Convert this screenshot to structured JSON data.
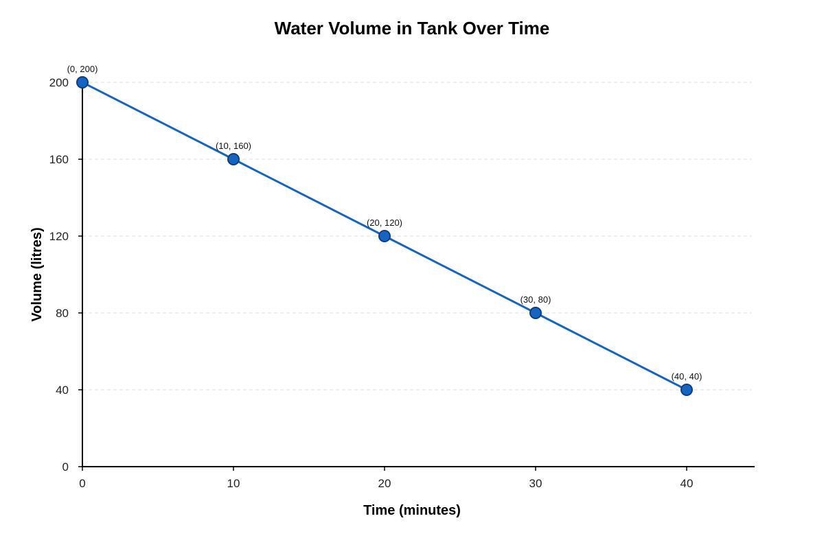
{
  "chart_data": {
    "type": "line",
    "title": "Water Volume in Tank Over Time",
    "xlabel": "Time (minutes)",
    "ylabel": "Volume (litres)",
    "xlim": [
      0,
      44.5
    ],
    "ylim": [
      0,
      200
    ],
    "xticks": [
      0,
      10,
      20,
      30,
      40
    ],
    "yticks": [
      0,
      40,
      80,
      120,
      160,
      200
    ],
    "grid": "horizontal-dashed",
    "x": [
      0,
      10,
      20,
      30,
      40
    ],
    "series": [
      {
        "values": [
          200,
          160,
          120,
          80,
          40
        ],
        "color": "#1565c0",
        "marker_color": "#1565c0",
        "point_labels": [
          "(0, 200)",
          "(10, 160)",
          "(20, 120)",
          "(30, 80)",
          "(40, 40)"
        ]
      }
    ]
  }
}
